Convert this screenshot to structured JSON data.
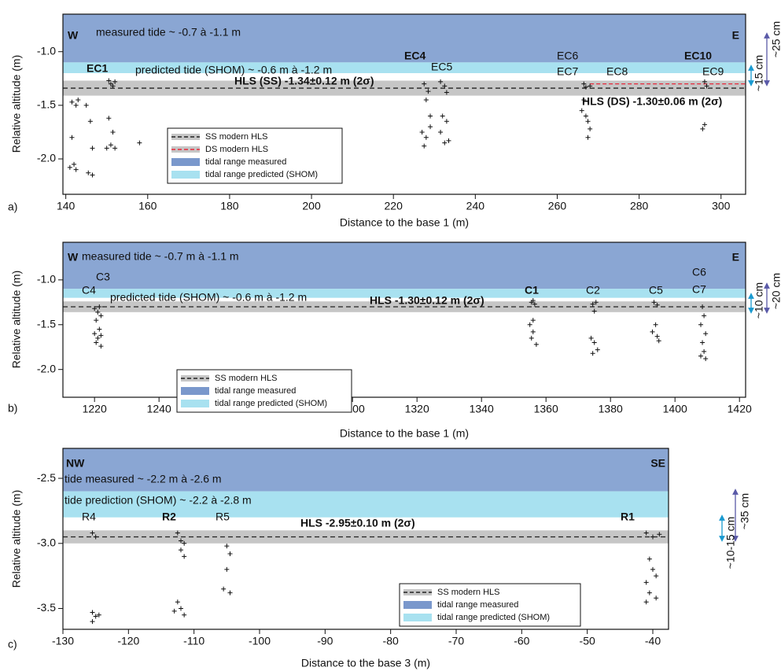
{
  "chart_data": [
    {
      "type": "scatter",
      "panel_label": "a)",
      "xlabel": "Distance to the base 1 (m)",
      "ylabel": "Relative altitude (m)",
      "xlim": [
        139.3,
        306
      ],
      "ylim": [
        -2.33,
        -0.65
      ],
      "xticks": [
        140,
        160,
        180,
        200,
        220,
        240,
        260,
        280,
        300
      ],
      "yticks": [
        {
          "value": -1,
          "label": "-1.0"
        },
        -1.5,
        {
          "value": -2,
          "label": "-2.0"
        }
      ],
      "bands": [
        {
          "name": "tidal range measured",
          "color": "#8aa6d3",
          "range": [
            -1.1,
            -0.65
          ]
        },
        {
          "name": "tidal range predicted (SHOM)",
          "color": "#a8e1f0",
          "range": [
            -1.2,
            -1.1
          ]
        }
      ],
      "hls_band": {
        "color": "#c6c6c6",
        "range": [
          -1.41,
          -1.27
        ]
      },
      "hls": {
        "name": "SS modern HLS",
        "value": -1.34,
        "color": "#222222"
      },
      "ds_hls": {
        "name": "DS modern HLS",
        "value": -1.3,
        "x_from": 268,
        "color": "#e8283a"
      },
      "legend": [
        {
          "name": "SS modern HLS",
          "kind": "line",
          "color": "#222222",
          "text_color": "#111111"
        },
        {
          "name": "DS modern HLS",
          "kind": "line",
          "color": "#e8283a",
          "text_color": "#e8283a"
        },
        {
          "name": "tidal range measured",
          "kind": "band",
          "color": "#7a98cc",
          "text_color": "#1c4f9c"
        },
        {
          "name": "tidal range predicted (SHOM)",
          "kind": "band",
          "color": "#a8e1f0",
          "text_color": "#1f8bbb"
        }
      ],
      "annotations": [
        {
          "text": "W",
          "bold": true
        },
        {
          "text": "measured tide ~ -0.7 à -1.1 m",
          "bold": false
        },
        {
          "text": "E",
          "bold": true
        },
        {
          "text": "EC1",
          "bold": true
        },
        {
          "text": "predicted tide (SHOM) ~ -0.6 m à -1.2 m",
          "bold": false
        },
        {
          "text": "EC4",
          "bold": true
        },
        {
          "text": "EC5",
          "bold": false
        },
        {
          "text": "EC6",
          "bold": false
        },
        {
          "text": "EC7",
          "bold": false
        },
        {
          "text": "EC8",
          "bold": false
        },
        {
          "text": "EC10",
          "bold": true
        },
        {
          "text": "EC9",
          "bold": false
        },
        {
          "text": "HLS (SS)  -1.34±0.12 m (2σ)",
          "bold": true
        },
        {
          "text": "HLS (DS) -1.30±0.06 m (2σ)",
          "bold": true,
          "color": "#e8283a"
        }
      ],
      "notes": [
        {
          "text": "~25 cm",
          "color": "#5a5aa8"
        },
        {
          "text": "~15 cm",
          "color": "#1a9ad0"
        }
      ],
      "points": {
        "x": [
          141.5,
          142.5,
          143,
          141,
          142,
          142.5,
          141.5,
          146,
          146.5,
          145.5,
          146.5,
          145,
          150.5,
          151,
          151.5,
          152,
          150,
          151,
          152,
          150.5,
          151.5,
          158,
          227.5,
          228.5,
          228,
          227,
          228,
          229,
          227.5,
          229,
          231.5,
          232.5,
          233,
          232,
          233,
          231.5,
          232.5,
          233.5,
          266.5,
          267,
          268,
          266.5,
          267,
          267.5,
          268,
          267.5,
          266,
          296,
          296.5,
          296,
          295.5
        ],
        "y": [
          -1.47,
          -1.5,
          -1.45,
          -2.08,
          -2.05,
          -2.1,
          -1.8,
          -1.65,
          -1.9,
          -2.13,
          -2.15,
          -1.5,
          -1.27,
          -1.3,
          -1.32,
          -1.28,
          -1.9,
          -1.87,
          -1.9,
          -1.62,
          -1.75,
          -1.85,
          -1.3,
          -1.37,
          -1.45,
          -1.75,
          -1.8,
          -1.7,
          -1.88,
          -1.6,
          -1.28,
          -1.32,
          -1.38,
          -1.6,
          -1.65,
          -1.75,
          -1.85,
          -1.83,
          -1.3,
          -1.33,
          -1.32,
          -1.45,
          -1.6,
          -1.65,
          -1.72,
          -1.8,
          -1.55,
          -1.28,
          -1.32,
          -1.68,
          -1.72
        ]
      }
    },
    {
      "type": "scatter",
      "panel_label": "b)",
      "xlabel": "Distance to the base 1 (m)",
      "ylabel": "Relative altitude (m)",
      "xlim": [
        1210.2,
        1421.9
      ],
      "ylim": [
        -2.31,
        -0.58
      ],
      "xticks": [
        1220,
        1240,
        1260,
        1280,
        1300,
        1320,
        1340,
        1360,
        1380,
        1400,
        1420
      ],
      "yticks": [
        {
          "value": -1,
          "label": "-1.0"
        },
        -1.5,
        {
          "value": -2,
          "label": "-2.0"
        }
      ],
      "bands": [
        {
          "name": "tidal range measured",
          "color": "#8aa6d3",
          "range": [
            -1.1,
            -0.58
          ]
        },
        {
          "name": "tidal range predicted (SHOM)",
          "color": "#a8e1f0",
          "range": [
            -1.2,
            -1.1
          ]
        }
      ],
      "hls_band": {
        "color": "#c6c6c6",
        "range": [
          -1.36,
          -1.24
        ]
      },
      "hls": {
        "name": "SS modern HLS",
        "value": -1.3,
        "color": "#222222"
      },
      "legend": [
        {
          "name": "SS modern HLS",
          "kind": "line",
          "color": "#222222",
          "text_color": "#111111"
        },
        {
          "name": "tidal range measured",
          "kind": "band",
          "color": "#7a98cc",
          "text_color": "#1c4f9c"
        },
        {
          "name": "tidal range predicted (SHOM)",
          "kind": "band",
          "color": "#a8e1f0",
          "text_color": "#1f8bbb"
        }
      ],
      "annotations": [
        {
          "text": "W",
          "bold": true
        },
        {
          "text": "measured tide ~ -0.7 m à -1.1 m",
          "bold": false
        },
        {
          "text": "E",
          "bold": true
        },
        {
          "text": "C3",
          "bold": false
        },
        {
          "text": "C4",
          "bold": false
        },
        {
          "text": "predicted tide (SHOM) ~ -0.6 m à -1.2 m",
          "bold": false
        },
        {
          "text": "HLS -1.30±0.12 m (2σ)",
          "bold": true
        },
        {
          "text": "C1",
          "bold": true
        },
        {
          "text": "C2",
          "bold": false
        },
        {
          "text": "C5",
          "bold": false
        },
        {
          "text": "C6",
          "bold": false
        },
        {
          "text": "C7",
          "bold": false
        }
      ],
      "notes": [
        {
          "text": "~20 cm",
          "color": "#5a5aa8"
        },
        {
          "text": "~10 cm",
          "color": "#1a9ad0"
        }
      ],
      "points": {
        "x": [
          1220,
          1221,
          1222,
          1220.5,
          1221.5,
          1220,
          1221,
          1222,
          1220.5,
          1221.5,
          1222,
          1355.5,
          1356.5,
          1356,
          1355,
          1356,
          1355.5,
          1357,
          1356,
          1374.5,
          1375.5,
          1375,
          1374,
          1375,
          1376,
          1374.5,
          1393.5,
          1394.5,
          1394,
          1393,
          1394.5,
          1395,
          1408.5,
          1409,
          1408,
          1409.5,
          1408.5,
          1409,
          1408,
          1409.5
        ],
        "y": [
          -1.32,
          -1.36,
          -1.4,
          -1.45,
          -1.3,
          -1.6,
          -1.65,
          -1.62,
          -1.7,
          -1.55,
          -1.74,
          -1.25,
          -1.27,
          -1.23,
          -1.5,
          -1.58,
          -1.65,
          -1.72,
          -1.45,
          -1.27,
          -1.25,
          -1.35,
          -1.65,
          -1.7,
          -1.78,
          -1.82,
          -1.25,
          -1.28,
          -1.5,
          -1.58,
          -1.63,
          -1.68,
          -1.3,
          -1.4,
          -1.5,
          -1.6,
          -1.7,
          -1.8,
          -1.85,
          -1.88
        ]
      }
    },
    {
      "type": "scatter",
      "panel_label": "c)",
      "xlabel": "Distance to the base 3 (m)",
      "ylabel": "Relative altitude (m)",
      "xlim": [
        -130,
        -37.6
      ],
      "ylim": [
        -3.66,
        -2.27
      ],
      "xticks": [
        -130,
        -120,
        -110,
        -100,
        -90,
        -80,
        -70,
        -60,
        -50,
        -40
      ],
      "yticks": [
        -2.5,
        {
          "value": -3,
          "label": "-3.0"
        },
        -3.5
      ],
      "bands": [
        {
          "name": "tidal range measured",
          "color": "#8aa6d3",
          "range": [
            -2.6,
            -2.27
          ]
        },
        {
          "name": "tidal range predicted (SHOM)",
          "color": "#a8e1f0",
          "range": [
            -2.8,
            -2.6
          ]
        }
      ],
      "hls_band": {
        "color": "#c6c6c6",
        "range": [
          -3.0,
          -2.9
        ]
      },
      "hls": {
        "name": "SS modern HLS",
        "value": -2.95,
        "color": "#222222"
      },
      "legend": [
        {
          "name": "SS modern HLS",
          "kind": "line",
          "color": "#222222",
          "text_color": "#111111"
        },
        {
          "name": "tidal range measured",
          "kind": "band",
          "color": "#7a98cc",
          "text_color": "#1c4f9c"
        },
        {
          "name": "tidal range predicted (SHOM)",
          "kind": "band",
          "color": "#a8e1f0",
          "text_color": "#1f8bbb"
        }
      ],
      "annotations": [
        {
          "text": "NW",
          "bold": true
        },
        {
          "text": "SE",
          "bold": true
        },
        {
          "text": "tide measured ~ -2.2 m à -2.6 m",
          "bold": false
        },
        {
          "text": "tide prediction (SHOM)  ~ -2.2 à -2.8 m",
          "bold": false
        },
        {
          "text": "R4",
          "bold": false
        },
        {
          "text": "R2",
          "bold": true
        },
        {
          "text": "R5",
          "bold": false
        },
        {
          "text": "HLS -2.95±0.10 m (2σ)",
          "bold": true
        },
        {
          "text": "R1",
          "bold": true
        }
      ],
      "notes": [
        {
          "text": "~35 cm",
          "color": "#5a5aa8"
        },
        {
          "text": "~10-15 cm",
          "color": "#1a9ad0"
        }
      ],
      "points": {
        "x": [
          -125.5,
          -125,
          -125.5,
          -125,
          -124.5,
          -125.5,
          -112.5,
          -112,
          -111.5,
          -112,
          -111.5,
          -112.5,
          -112,
          -111.5,
          -113,
          -105,
          -104.5,
          -105,
          -105.5,
          -104.5,
          -41,
          -40,
          -39,
          -40.5,
          -40,
          -39.5,
          -41,
          -40.5,
          -39.5,
          -41
        ],
        "y": [
          -2.92,
          -2.95,
          -3.53,
          -3.56,
          -3.55,
          -3.6,
          -2.92,
          -2.98,
          -3.0,
          -3.05,
          -3.1,
          -3.45,
          -3.5,
          -3.55,
          -3.52,
          -3.02,
          -3.08,
          -3.2,
          -3.35,
          -3.38,
          -2.92,
          -2.95,
          -2.93,
          -3.12,
          -3.2,
          -3.25,
          -3.3,
          -3.38,
          -3.42,
          -3.45
        ]
      }
    }
  ]
}
